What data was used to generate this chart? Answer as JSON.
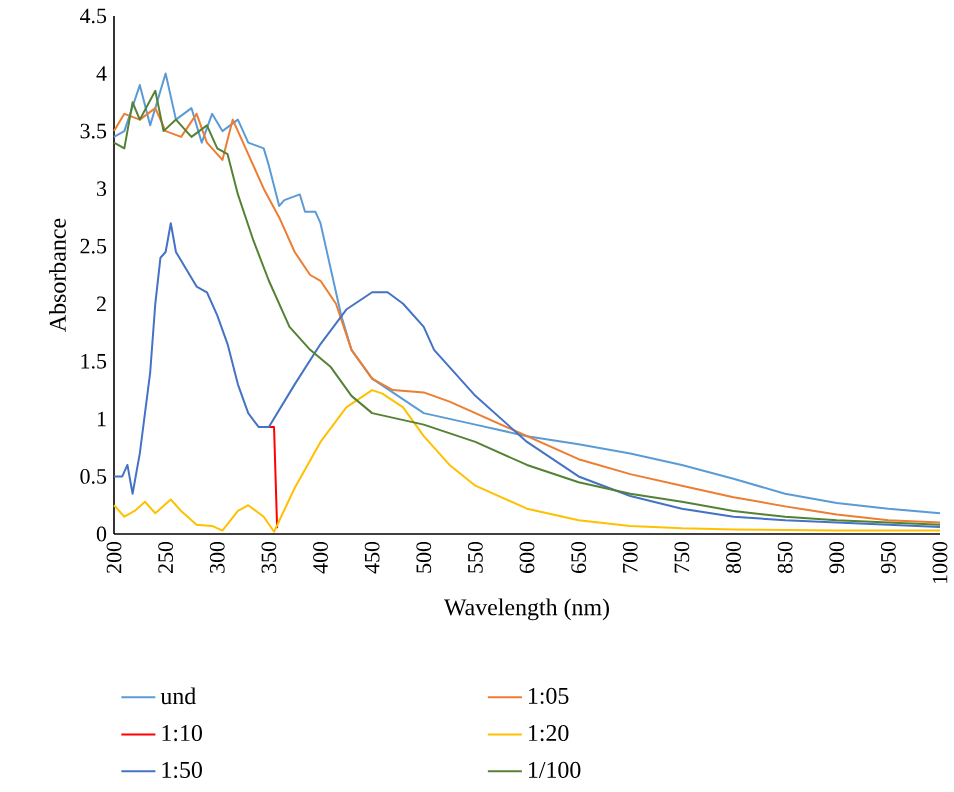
{
  "chart_data": {
    "type": "line",
    "xlabel": "Wavelength (nm)",
    "ylabel": "Absorbance",
    "xlim": [
      200,
      1000
    ],
    "xticks": [
      200,
      250,
      300,
      350,
      400,
      450,
      500,
      550,
      600,
      650,
      700,
      750,
      800,
      850,
      900,
      950,
      1000
    ],
    "ylim": [
      0,
      4.5
    ],
    "yticks": [
      0,
      0.5,
      1,
      1.5,
      2,
      2.5,
      3,
      3.5,
      4,
      4.5
    ],
    "grid": false,
    "legend": "bottom",
    "marker": "none",
    "line_style": "solid",
    "series": [
      {
        "name": "und",
        "color": "#5b9bd5",
        "x": [
          200,
          210,
          225,
          235,
          250,
          260,
          275,
          285,
          295,
          305,
          320,
          330,
          345,
          350,
          360,
          365,
          380,
          385,
          395,
          400,
          410,
          420,
          430,
          450,
          475,
          500,
          550,
          600,
          650,
          700,
          750,
          800,
          850,
          900,
          950,
          1000
        ],
        "values": [
          3.45,
          3.5,
          3.9,
          3.55,
          4.0,
          3.6,
          3.7,
          3.4,
          3.65,
          3.5,
          3.6,
          3.4,
          3.35,
          3.2,
          2.85,
          2.9,
          2.95,
          2.8,
          2.8,
          2.7,
          2.3,
          1.9,
          1.6,
          1.35,
          1.2,
          1.05,
          0.95,
          0.85,
          0.78,
          0.7,
          0.6,
          0.48,
          0.35,
          0.27,
          0.22,
          0.18
        ]
      },
      {
        "name": "1:05",
        "color": "#ed7d31",
        "x": [
          200,
          210,
          225,
          240,
          250,
          265,
          280,
          290,
          300,
          305,
          315,
          330,
          345,
          360,
          375,
          390,
          400,
          415,
          430,
          450,
          470,
          500,
          525,
          550,
          600,
          650,
          700,
          750,
          800,
          850,
          900,
          950,
          1000
        ],
        "values": [
          3.5,
          3.65,
          3.6,
          3.7,
          3.5,
          3.45,
          3.65,
          3.4,
          3.3,
          3.25,
          3.6,
          3.3,
          3.0,
          2.75,
          2.45,
          2.25,
          2.2,
          2.0,
          1.6,
          1.35,
          1.25,
          1.23,
          1.15,
          1.05,
          0.85,
          0.65,
          0.52,
          0.42,
          0.32,
          0.24,
          0.17,
          0.12,
          0.1
        ]
      },
      {
        "name": "1:10",
        "color": "#ff0000",
        "x": [
          350,
          355,
          358
        ],
        "values": [
          0.93,
          0.93,
          0.05
        ]
      },
      {
        "name": "1:20",
        "color": "#ffc000",
        "x": [
          200,
          210,
          220,
          230,
          240,
          255,
          265,
          280,
          295,
          305,
          320,
          330,
          345,
          355,
          375,
          400,
          425,
          450,
          460,
          480,
          500,
          525,
          550,
          600,
          650,
          700,
          750,
          800,
          900,
          1000
        ],
        "values": [
          0.25,
          0.15,
          0.2,
          0.28,
          0.18,
          0.3,
          0.2,
          0.08,
          0.07,
          0.03,
          0.2,
          0.25,
          0.15,
          0.02,
          0.4,
          0.8,
          1.1,
          1.25,
          1.22,
          1.1,
          0.85,
          0.6,
          0.42,
          0.22,
          0.12,
          0.07,
          0.05,
          0.04,
          0.03,
          0.03
        ]
      },
      {
        "name": "1:50",
        "color": "#4472c4",
        "x": [
          200,
          208,
          213,
          218,
          225,
          235,
          240,
          245,
          250,
          255,
          260,
          270,
          280,
          290,
          300,
          310,
          320,
          330,
          340,
          350,
          375,
          400,
          425,
          450,
          465,
          480,
          500,
          510,
          550,
          600,
          650,
          700,
          750,
          800,
          850,
          900,
          950,
          1000
        ],
        "values": [
          0.5,
          0.5,
          0.6,
          0.35,
          0.7,
          1.4,
          2.0,
          2.4,
          2.45,
          2.7,
          2.45,
          2.3,
          2.15,
          2.1,
          1.9,
          1.65,
          1.3,
          1.05,
          0.93,
          0.93,
          1.3,
          1.65,
          1.95,
          2.1,
          2.1,
          2.0,
          1.8,
          1.6,
          1.2,
          0.8,
          0.5,
          0.33,
          0.22,
          0.15,
          0.12,
          0.1,
          0.08,
          0.06
        ]
      },
      {
        "name": "1/100",
        "color": "#548235",
        "x": [
          200,
          210,
          218,
          225,
          240,
          248,
          260,
          275,
          290,
          300,
          310,
          320,
          335,
          350,
          370,
          390,
          410,
          430,
          450,
          475,
          500,
          550,
          600,
          650,
          700,
          750,
          800,
          850,
          900,
          950,
          1000
        ],
        "values": [
          3.4,
          3.35,
          3.75,
          3.6,
          3.85,
          3.5,
          3.6,
          3.45,
          3.55,
          3.35,
          3.3,
          2.95,
          2.55,
          2.2,
          1.8,
          1.6,
          1.45,
          1.2,
          1.05,
          1.0,
          0.95,
          0.8,
          0.6,
          0.45,
          0.35,
          0.28,
          0.2,
          0.15,
          0.12,
          0.1,
          0.08
        ]
      }
    ]
  }
}
